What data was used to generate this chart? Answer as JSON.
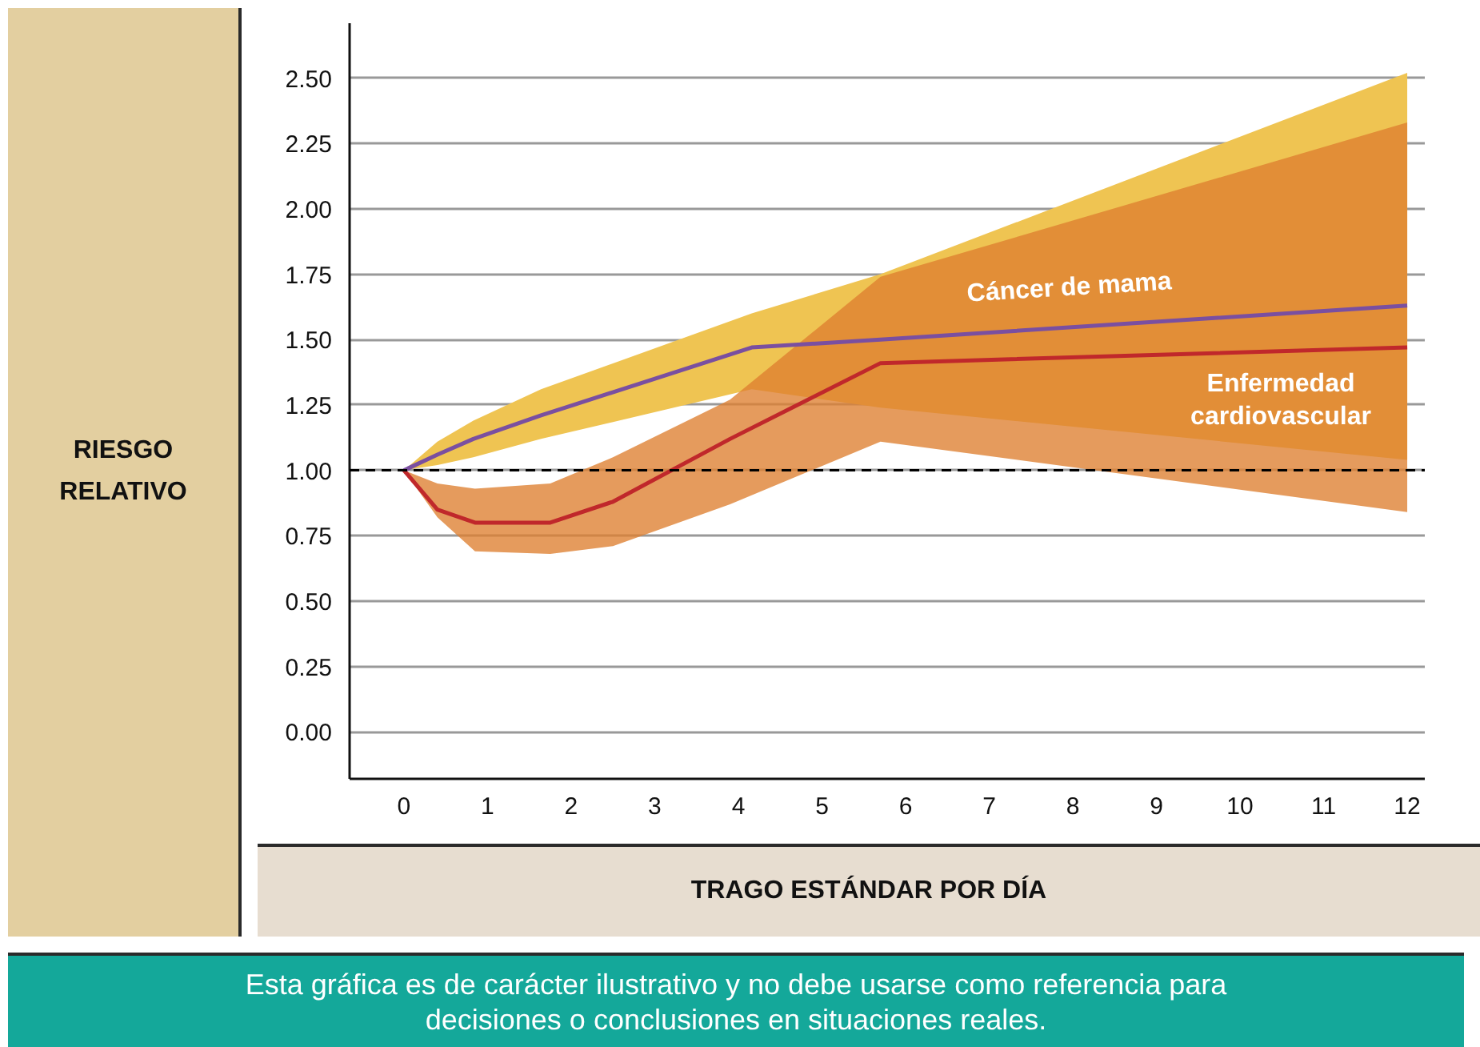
{
  "chart_data": {
    "type": "line",
    "xlabel": "TRAGO ESTÁNDAR POR DÍA",
    "ylabel": "RIESGO RELATIVO",
    "annotations": [
      "Esta gráfica es de carácter ilustrativo y no debe usarse como referencia para decisiones o conclusiones en situaciones reales."
    ],
    "series": [
      {
        "name": "Cáncer de mama",
        "color": "#7a4fa0",
        "x": [
          0,
          0.4,
          0.83,
          1.64,
          4.16,
          5.7,
          12
        ],
        "values": [
          1,
          1.06,
          1.12,
          1.21,
          1.47,
          1.5,
          1.63
        ],
        "lower": [
          1,
          1.02,
          1.05,
          1.12,
          1.31,
          1.24,
          1.04
        ],
        "upper": [
          1,
          1.11,
          1.19,
          1.31,
          1.6,
          1.75,
          2.52
        ]
      },
      {
        "name": "Enfermedad cardiovascular",
        "color": "#c0282b",
        "x": [
          0,
          0.4,
          0.85,
          1.75,
          2.5,
          3.9,
          5.7,
          12
        ],
        "values": [
          1,
          0.85,
          0.8,
          0.8,
          0.88,
          1.12,
          1.41,
          1.47
        ],
        "lower": [
          1,
          0.82,
          0.69,
          0.68,
          0.71,
          0.87,
          1.11,
          0.84
        ],
        "upper": [
          1,
          0.95,
          0.93,
          0.95,
          1.05,
          1.27,
          1.74,
          2.33
        ]
      }
    ],
    "xlim": [
      -0.65,
      12.21
    ],
    "ylim": [
      -0.18,
      2.71
    ],
    "xticks": [
      0,
      1,
      2,
      3,
      4,
      5,
      6,
      7,
      8,
      9,
      10,
      11,
      12
    ],
    "yticks": [
      {
        "value": 0,
        "label": "0.00"
      },
      {
        "value": 0.25,
        "label": "0.25"
      },
      {
        "value": 0.5,
        "label": "0.50"
      },
      {
        "value": 0.75,
        "label": "0.75"
      },
      {
        "value": 1,
        "label": "1.00"
      },
      {
        "value": 1.25,
        "label": "1.25"
      },
      {
        "value": 1.5,
        "label": "1.50"
      },
      {
        "value": 1.75,
        "label": "1.75"
      },
      {
        "value": 2,
        "label": "2.00"
      },
      {
        "value": 2.25,
        "label": "2.25"
      },
      {
        "value": 2.5,
        "label": "2.50"
      }
    ],
    "ref_lines": [
      {
        "axis": "y",
        "value": 1,
        "color": "#000000",
        "line_style": "dashed"
      }
    ],
    "grid": "y",
    "marker": "none",
    "line_style": "solid"
  }
}
